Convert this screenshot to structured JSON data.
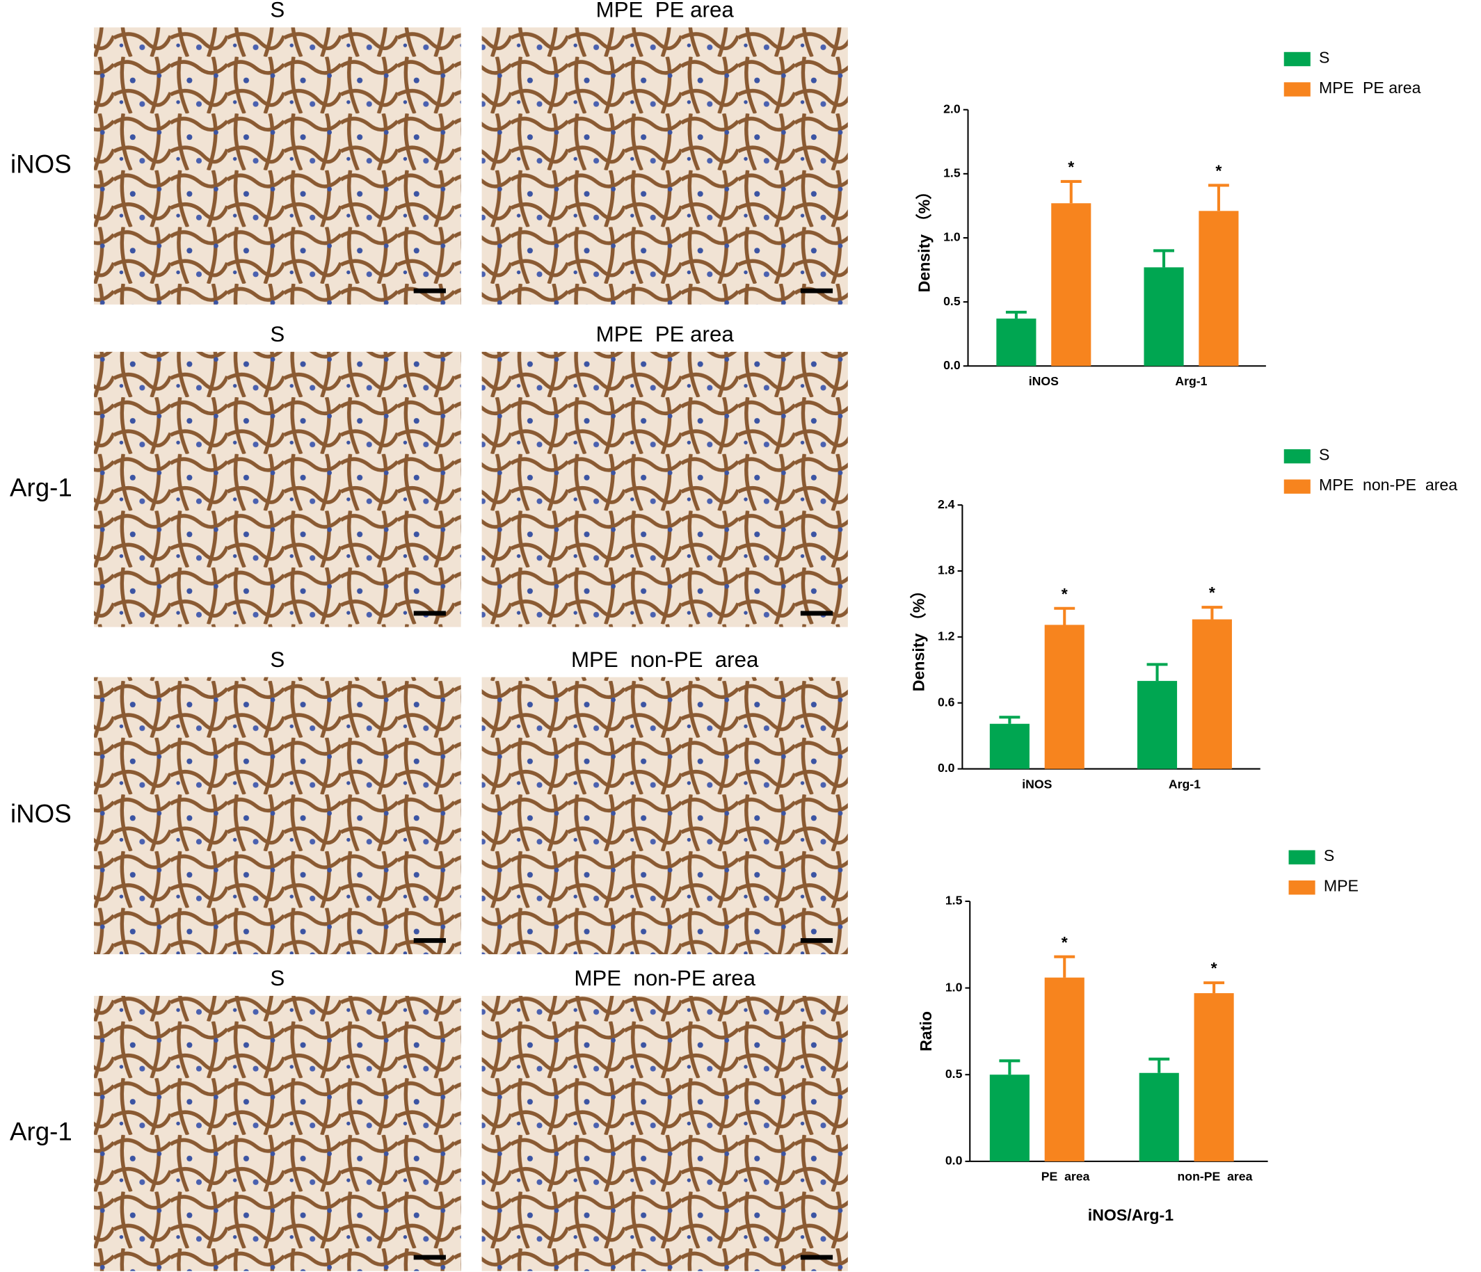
{
  "rows": [
    {
      "label": "iNOS",
      "panels": [
        "S",
        "MPE  PE area"
      ]
    },
    {
      "label": "Arg-1",
      "panels": [
        "S",
        "MPE  PE area"
      ]
    },
    {
      "label": "iNOS",
      "panels": [
        "S",
        "MPE  non-PE  area"
      ]
    },
    {
      "label": "Arg-1",
      "panels": [
        "S",
        "MPE  non-PE area"
      ]
    }
  ],
  "chart_data": [
    {
      "type": "bar",
      "ylabel": "Density （%）",
      "categories": [
        "iNOS",
        "Arg-1"
      ],
      "series": [
        {
          "name": "S",
          "color": "#00a651",
          "values": [
            0.37,
            0.77
          ],
          "errors": [
            0.05,
            0.13
          ]
        },
        {
          "name": "MPE  PE area",
          "color": "#f7841e",
          "values": [
            1.27,
            1.21
          ],
          "errors": [
            0.17,
            0.2
          ],
          "significance": [
            "*",
            "*"
          ]
        }
      ],
      "ylim": [
        0,
        2
      ],
      "yticks": [
        {
          "value": 0,
          "label": "0.0"
        },
        {
          "value": 0.5,
          "label": "0.5"
        },
        {
          "value": 1,
          "label": "1.0"
        },
        {
          "value": 1.5,
          "label": "1.5"
        },
        {
          "value": 2,
          "label": "2.0"
        }
      ]
    },
    {
      "type": "bar",
      "ylabel": "Density （%）",
      "categories": [
        "iNOS",
        "Arg-1"
      ],
      "series": [
        {
          "name": "S",
          "color": "#00a651",
          "values": [
            0.41,
            0.8
          ],
          "errors": [
            0.06,
            0.15
          ]
        },
        {
          "name": "MPE  non-PE  area",
          "color": "#f7841e",
          "values": [
            1.31,
            1.36
          ],
          "errors": [
            0.15,
            0.11
          ],
          "significance": [
            "*",
            "*"
          ]
        }
      ],
      "ylim": [
        0,
        2.4
      ],
      "yticks": [
        {
          "value": 0,
          "label": "0.0"
        },
        {
          "value": 0.6,
          "label": "0.6"
        },
        {
          "value": 1.2,
          "label": "1.2"
        },
        {
          "value": 1.8,
          "label": "1.8"
        },
        {
          "value": 2.4,
          "label": "2.4"
        }
      ]
    },
    {
      "type": "bar",
      "ylabel": "Ratio",
      "xlabel": "iNOS/Arg-1",
      "categories": [
        "PE  area",
        "non-PE  area"
      ],
      "series": [
        {
          "name": "S",
          "color": "#00a651",
          "values": [
            0.5,
            0.51
          ],
          "errors": [
            0.08,
            0.08
          ]
        },
        {
          "name": "MPE",
          "color": "#f7841e",
          "values": [
            1.06,
            0.97
          ],
          "errors": [
            0.12,
            0.06
          ],
          "significance": [
            "*",
            "*"
          ]
        }
      ],
      "ylim": [
        0,
        1.5
      ],
      "yticks": [
        {
          "value": 0,
          "label": "0.0"
        },
        {
          "value": 0.5,
          "label": "0.5"
        },
        {
          "value": 1,
          "label": "1.0"
        },
        {
          "value": 1.5,
          "label": "1.5"
        }
      ]
    }
  ]
}
